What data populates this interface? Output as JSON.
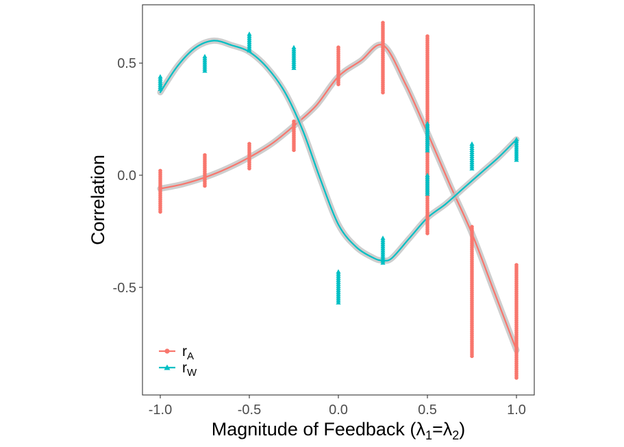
{
  "chart_data": {
    "type": "scatter",
    "xlabel": "Magnitude of Feedback (λ₁=λ₂)",
    "xlabel_parts": {
      "main": "Magnitude of Feedback (",
      "sym1": "λ",
      "sub1": "1",
      "eq": "=",
      "sym2": "λ",
      "sub2": "2",
      "close": ")"
    },
    "ylabel": "Correlation",
    "xlim": [
      -1.1,
      1.1
    ],
    "ylim": [
      -0.98,
      0.76
    ],
    "xticks": [
      -1.0,
      -0.5,
      0.0,
      0.5,
      1.0
    ],
    "xtick_labels": [
      "-1.0",
      "-0.5",
      "0.0",
      "0.5",
      "1.0"
    ],
    "yticks": [
      -0.5,
      0.0,
      0.5
    ],
    "ytick_labels": [
      "-0.5",
      "0.0",
      "0.5"
    ],
    "grid": false,
    "legend_position": "bottom-left",
    "series": [
      {
        "name": "rA",
        "label_main": "r",
        "label_sub": "A",
        "color": "#F8766D",
        "marker": "circle",
        "points": [
          {
            "x": -1.0,
            "y_min": -0.17,
            "y_max": 0.02
          },
          {
            "x": -0.75,
            "y_min": -0.05,
            "y_max": 0.09
          },
          {
            "x": -0.5,
            "y_min": 0.03,
            "y_max": 0.14
          },
          {
            "x": -0.25,
            "y_min": 0.11,
            "y_max": 0.24
          },
          {
            "x": 0.0,
            "y_min": 0.4,
            "y_max": 0.57
          },
          {
            "x": 0.25,
            "y_min": 0.36,
            "y_max": 0.68
          },
          {
            "x": 0.5,
            "y_min": -0.26,
            "y_max": 0.62
          },
          {
            "x": 0.75,
            "y_min": -0.81,
            "y_max": -0.23
          },
          {
            "x": 1.0,
            "y_min": -0.91,
            "y_max": -0.4
          }
        ],
        "smooth": [
          [
            -1.0,
            -0.06
          ],
          [
            -0.875,
            -0.04
          ],
          [
            -0.75,
            -0.01
          ],
          [
            -0.625,
            0.03
          ],
          [
            -0.5,
            0.08
          ],
          [
            -0.375,
            0.14
          ],
          [
            -0.25,
            0.22
          ],
          [
            -0.125,
            0.31
          ],
          [
            0.0,
            0.44
          ],
          [
            0.125,
            0.51
          ],
          [
            0.25,
            0.58
          ],
          [
            0.375,
            0.41
          ],
          [
            0.5,
            0.19
          ],
          [
            0.625,
            -0.04
          ],
          [
            0.75,
            -0.26
          ],
          [
            0.875,
            -0.52
          ],
          [
            1.0,
            -0.78
          ]
        ]
      },
      {
        "name": "rW",
        "label_main": "r",
        "label_sub": "W",
        "color": "#00BFC4",
        "marker": "triangle",
        "points": [
          {
            "x": -1.0,
            "y_min": 0.38,
            "y_max": 0.44
          },
          {
            "x": -0.75,
            "y_min": 0.46,
            "y_max": 0.53
          },
          {
            "x": -0.5,
            "y_min": 0.55,
            "y_max": 0.63
          },
          {
            "x": -0.25,
            "y_min": 0.47,
            "y_max": 0.57
          },
          {
            "x": 0.0,
            "y_min": -0.57,
            "y_max": -0.43
          },
          {
            "x": 0.25,
            "y_min": -0.39,
            "y_max": -0.28
          },
          {
            "x": 0.5,
            "y_min": 0.11,
            "y_max": 0.23
          },
          {
            "x": 0.5,
            "y_min": -0.09,
            "y_max": 0.0
          },
          {
            "x": 0.75,
            "y_min": 0.03,
            "y_max": 0.14
          },
          {
            "x": 1.0,
            "y_min": 0.06,
            "y_max": 0.16
          }
        ],
        "smooth": [
          [
            -1.0,
            0.37
          ],
          [
            -0.9,
            0.49
          ],
          [
            -0.8,
            0.57
          ],
          [
            -0.7,
            0.6
          ],
          [
            -0.6,
            0.58
          ],
          [
            -0.5,
            0.55
          ],
          [
            -0.4,
            0.48
          ],
          [
            -0.3,
            0.37
          ],
          [
            -0.2,
            0.2
          ],
          [
            -0.1,
            -0.02
          ],
          [
            0.0,
            -0.22
          ],
          [
            0.1,
            -0.32
          ],
          [
            0.2,
            -0.37
          ],
          [
            0.25,
            -0.38
          ],
          [
            0.3,
            -0.37
          ],
          [
            0.4,
            -0.28
          ],
          [
            0.5,
            -0.19
          ],
          [
            0.6,
            -0.13
          ],
          [
            0.7,
            -0.06
          ],
          [
            0.8,
            0.01
          ],
          [
            0.9,
            0.08
          ],
          [
            1.0,
            0.16
          ]
        ]
      }
    ]
  }
}
